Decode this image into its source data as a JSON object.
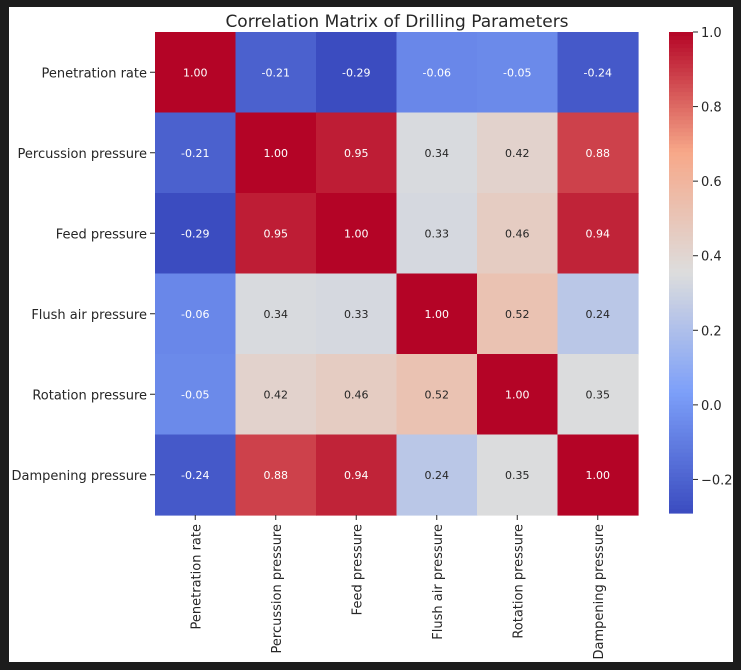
{
  "chart_data": {
    "type": "heatmap",
    "title": "Correlation Matrix of Drilling Parameters",
    "xlabel": "",
    "ylabel": "",
    "labels": [
      "Penetration rate",
      "Percussion pressure",
      "Feed pressure",
      "Flush air pressure",
      "Rotation pressure",
      "Dampening pressure"
    ],
    "values": [
      [
        1.0,
        -0.21,
        -0.29,
        -0.06,
        -0.05,
        -0.24
      ],
      [
        -0.21,
        1.0,
        0.95,
        0.34,
        0.42,
        0.88
      ],
      [
        -0.29,
        0.95,
        1.0,
        0.33,
        0.46,
        0.94
      ],
      [
        -0.06,
        0.34,
        0.33,
        1.0,
        0.52,
        0.24
      ],
      [
        -0.05,
        0.42,
        0.46,
        0.52,
        1.0,
        0.35
      ],
      [
        -0.24,
        0.88,
        0.94,
        0.24,
        0.35,
        1.0
      ]
    ],
    "cell_labels": [
      [
        "1.00",
        "-0.21",
        "-0.29",
        "-0.06",
        "-0.05",
        "-0.24"
      ],
      [
        "-0.21",
        "1.00",
        "0.95",
        "0.34",
        "0.42",
        "0.88"
      ],
      [
        "-0.29",
        "0.95",
        "1.00",
        "0.33",
        "0.46",
        "0.94"
      ],
      [
        "-0.06",
        "0.34",
        "0.33",
        "1.00",
        "0.52",
        "0.24"
      ],
      [
        "-0.05",
        "0.42",
        "0.46",
        "0.52",
        "1.00",
        "0.35"
      ],
      [
        "-0.24",
        "0.88",
        "0.94",
        "0.24",
        "0.35",
        "1.00"
      ]
    ],
    "colormap": "coolwarm",
    "colorbar": {
      "vmin": -0.29,
      "vmax": 1.0,
      "ticks": [
        -0.2,
        0.0,
        0.2,
        0.4,
        0.6,
        0.8,
        1.0
      ],
      "tick_labels": [
        "−0.2",
        "0.0",
        "0.2",
        "0.4",
        "0.6",
        "0.8",
        "1.0"
      ]
    },
    "grid": false,
    "legend": "colorbar-right"
  },
  "colors": {
    "cool_end": "#3b4cc0",
    "neutral": "#dddddd",
    "warm_end": "#b40426",
    "text_dark": "#262626",
    "text_light": "#ffffff"
  }
}
